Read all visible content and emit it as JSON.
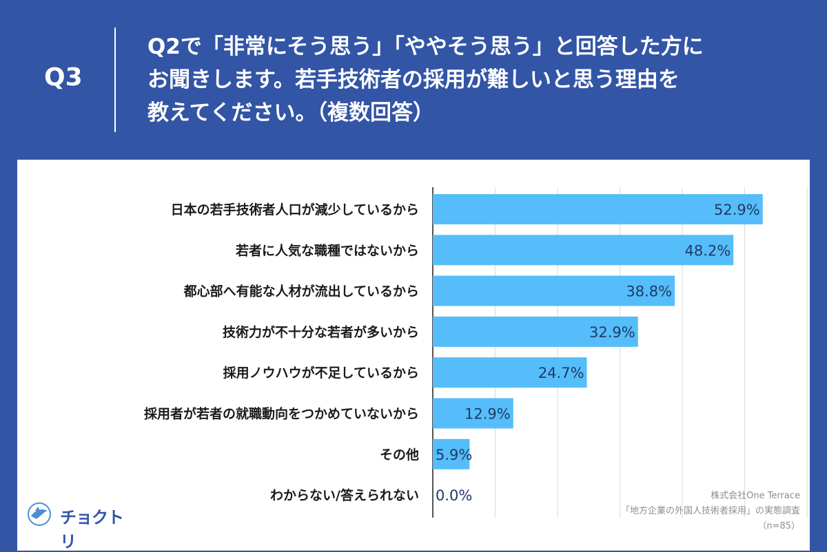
{
  "question": {
    "label": "Q3",
    "lines": [
      "Q2で「非常にそう思う」「ややそう思う」と回答した方に",
      "お聞きします。若手技術者の採用が難しいと思う理由を",
      "教えてください。（複数回答）"
    ]
  },
  "chart_data": {
    "type": "bar",
    "orientation": "horizontal",
    "categories": [
      "日本の若手技術者人口が減少しているから",
      "若者に人気な職種ではないから",
      "都心部へ有能な人材が流出しているから",
      "技術力が不十分な若者が多いから",
      "採用ノウハウが不足しているから",
      "採用者が若者の就職動向をつかめていないから",
      "その他",
      "わからない/答えられない"
    ],
    "values": [
      52.9,
      48.2,
      38.8,
      32.9,
      24.7,
      12.9,
      5.9,
      0.0
    ],
    "value_labels": [
      "52.9%",
      "48.2%",
      "38.8%",
      "32.9%",
      "24.7%",
      "12.9%",
      "5.9%",
      "0.0%"
    ],
    "xlim": [
      0,
      60
    ],
    "grid": true,
    "bar_color": "#55bdf9"
  },
  "source": {
    "lines": [
      "株式会社One Terrace",
      "「地方企業の外国人技術者採用」の実態調査",
      "（n=85）"
    ]
  },
  "logo": {
    "text": "チョクトリ",
    "icon": "bird-circle-logo-icon"
  }
}
